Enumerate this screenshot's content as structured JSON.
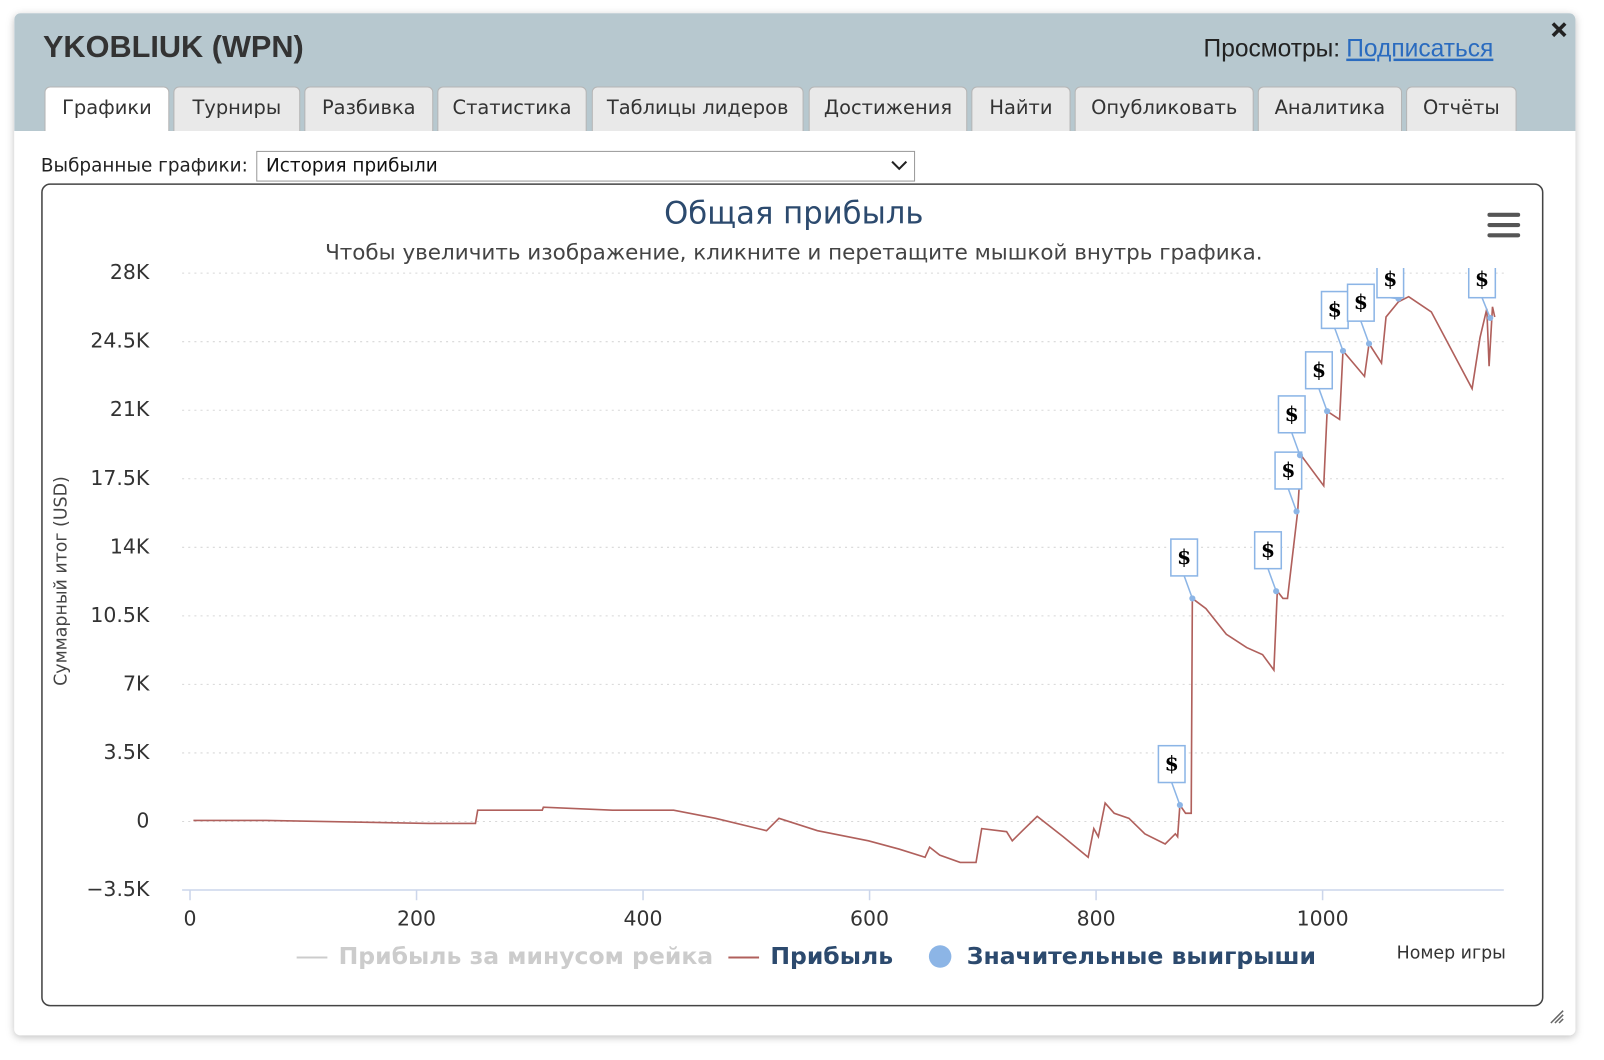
{
  "header": {
    "title": "YKOBLIUK (WPN)",
    "views_label": "Просмотры:",
    "subscribe_link": "Подписаться"
  },
  "tabs": [
    "Графики",
    "Турниры",
    "Разбивка",
    "Статистика",
    "Таблицы лидеров",
    "Достижения",
    "Найти",
    "Опубликовать",
    "Аналитика",
    "Отчёты"
  ],
  "active_tab": 0,
  "selector": {
    "label": "Выбранные графики:",
    "value": "История прибыли"
  },
  "chart_data": {
    "type": "line",
    "title": "Общая прибыль",
    "subtitle": "Чтобы увеличить изображение, кликните и перетащите мышкой внутрь графика.",
    "y_label": "Суммарный итог (USD)",
    "x_label": "Номер игры",
    "xlim": [
      -7,
      1160
    ],
    "ylim": [
      -3500,
      28000
    ],
    "xticks": [
      0,
      200,
      400,
      600,
      800,
      1000
    ],
    "yticks": [
      {
        "value": -3500,
        "label": "−3.5K"
      },
      0,
      {
        "value": 3500,
        "label": "3.5K"
      },
      {
        "value": 7000,
        "label": "7K"
      },
      {
        "value": 10500,
        "label": "10.5K"
      },
      {
        "value": 14000,
        "label": "14K"
      },
      {
        "value": 17500,
        "label": "17.5K"
      },
      {
        "value": 21000,
        "label": "21K"
      },
      {
        "value": 24500,
        "label": "24.5K"
      },
      {
        "value": 28000,
        "label": "28K"
      }
    ],
    "grid": true,
    "series": [
      {
        "name": "Прибыль за минусом рейка",
        "color": "#cccccc",
        "visible": false
      },
      {
        "name": "Прибыль",
        "color": "#b0605c",
        "x": [
          3,
          67,
          211,
          252,
          254,
          311,
          312,
          373,
          427,
          464,
          509,
          520,
          554,
          599,
          626,
          649,
          653,
          662,
          680,
          694,
          699,
          721,
          726,
          735,
          748,
          771,
          793,
          798,
          802,
          808,
          816,
          829,
          843,
          861,
          870,
          872,
          874,
          879,
          884,
          885,
          897,
          915,
          933,
          947,
          957,
          960,
          965,
          969,
          978,
          981,
          1001,
          1004,
          1015,
          1018,
          1037,
          1041,
          1052,
          1056,
          1067,
          1076,
          1096,
          1132,
          1139,
          1145,
          1147,
          1150,
          1152
        ],
        "values": [
          50,
          50,
          -100,
          -100,
          575,
          575,
          730,
          575,
          575,
          160,
          -470,
          160,
          -470,
          -990,
          -1410,
          -1830,
          -1310,
          -1720,
          -2090,
          -2090,
          -365,
          -520,
          -990,
          -470,
          260,
          -780,
          -1830,
          -365,
          -780,
          940,
          420,
          160,
          -630,
          -1150,
          -630,
          -780,
          840,
          420,
          420,
          11390,
          10870,
          9560,
          8880,
          8520,
          7730,
          11760,
          11390,
          11390,
          15830,
          18700,
          17140,
          20950,
          20530,
          24030,
          22730,
          24400,
          23410,
          25760,
          26540,
          26800,
          26020,
          22100,
          24710,
          26180,
          23250,
          26280,
          25760
        ]
      },
      {
        "name": "Значительные выигрыши",
        "type": "scatter",
        "color": "#8cb5e6",
        "marker_text": "$",
        "x": [
          874,
          885,
          959,
          977,
          980,
          1004,
          1018,
          1041,
          1067,
          1148
        ],
        "values": [
          840,
          11390,
          11760,
          15830,
          18700,
          20950,
          24030,
          24400,
          26700,
          25710
        ]
      }
    ]
  }
}
